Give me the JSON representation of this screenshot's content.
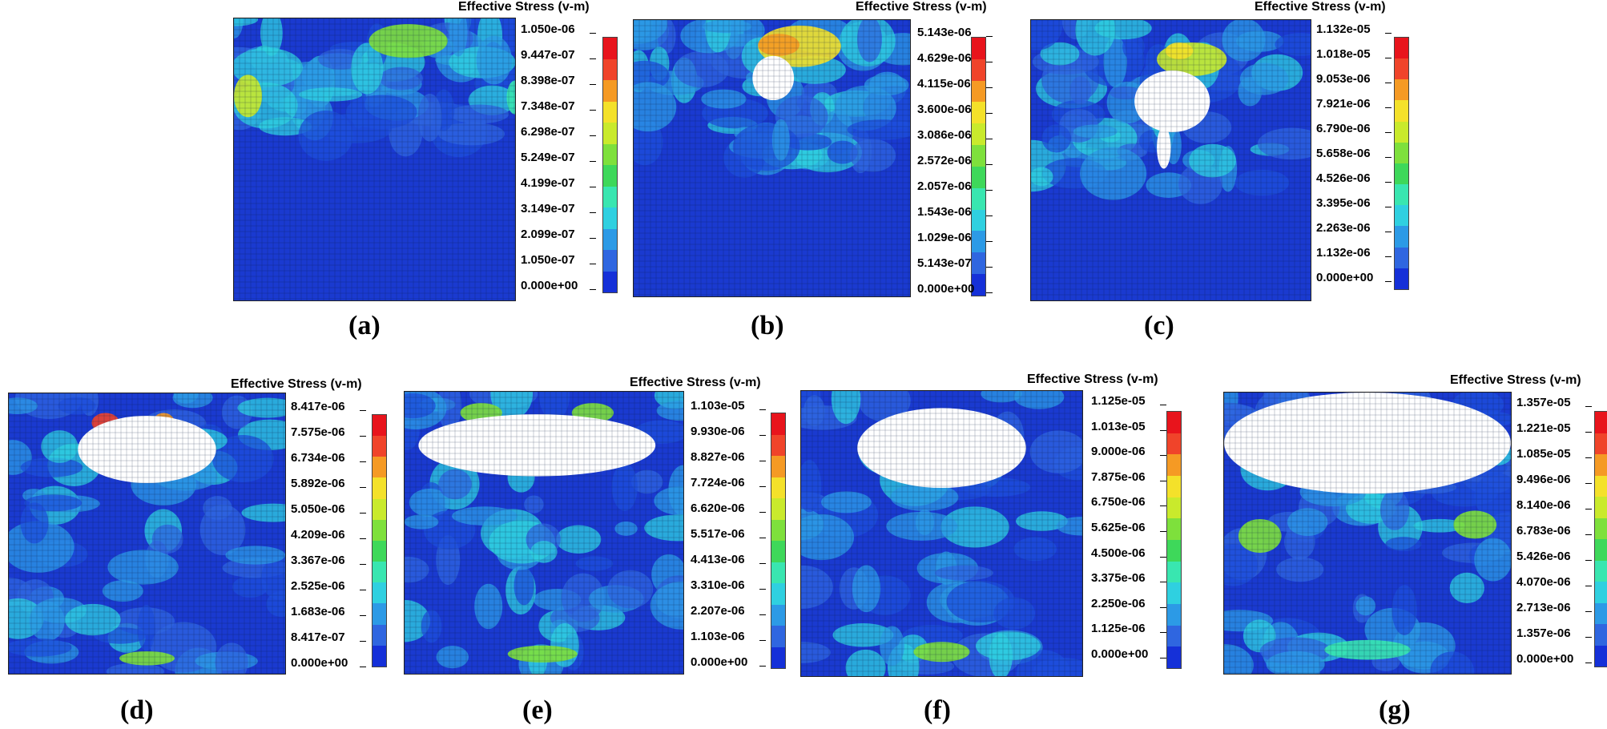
{
  "figure_title": "Effective Stress (v-m)",
  "colors": {
    "scale": [
      "#1530d8",
      "#2f66e0",
      "#2c9ae6",
      "#2fd0e0",
      "#39e6b0",
      "#3ed85a",
      "#7ee03c",
      "#c9ea2c",
      "#f4e12a",
      "#f59a24",
      "#f0442a",
      "#e8141c"
    ],
    "background": "#ffffff"
  },
  "panels": [
    {
      "id": "a",
      "label": "(a)",
      "title": "Effective Stress (v-m)",
      "ticks": [
        "1.050e-06",
        "9.447e-07",
        "8.398e-07",
        "7.348e-07",
        "6.298e-07",
        "5.249e-07",
        "4.199e-07",
        "3.149e-07",
        "2.099e-07",
        "1.050e-07",
        "0.000e+00"
      ]
    },
    {
      "id": "b",
      "label": "(b)",
      "title": "Effective Stress (v-m)",
      "ticks": [
        "5.143e-06",
        "4.629e-06",
        "4.115e-06",
        "3.600e-06",
        "3.086e-06",
        "2.572e-06",
        "2.057e-06",
        "1.543e-06",
        "1.029e-06",
        "5.143e-07",
        "0.000e+00"
      ]
    },
    {
      "id": "c",
      "label": "(c)",
      "title": "Effective Stress (v-m)",
      "ticks": [
        "1.132e-05",
        "1.018e-05",
        "9.053e-06",
        "7.921e-06",
        "6.790e-06",
        "5.658e-06",
        "4.526e-06",
        "3.395e-06",
        "2.263e-06",
        "1.132e-06",
        "0.000e+00"
      ]
    },
    {
      "id": "d",
      "label": "(d)",
      "title": "Effective Stress (v-m)",
      "ticks": [
        "8.417e-06",
        "7.575e-06",
        "6.734e-06",
        "5.892e-06",
        "5.050e-06",
        "4.209e-06",
        "3.367e-06",
        "2.525e-06",
        "1.683e-06",
        "8.417e-07",
        "0.000e+00"
      ]
    },
    {
      "id": "e",
      "label": "(e)",
      "title": "Effective Stress (v-m)",
      "ticks": [
        "1.103e-05",
        "9.930e-06",
        "8.827e-06",
        "7.724e-06",
        "6.620e-06",
        "5.517e-06",
        "4.413e-06",
        "3.310e-06",
        "2.207e-06",
        "1.103e-06",
        "0.000e+00"
      ]
    },
    {
      "id": "f",
      "label": "(f)",
      "title": "Effective Stress (v-m)",
      "ticks": [
        "1.125e-05",
        "1.013e-05",
        "9.000e-06",
        "7.875e-06",
        "6.750e-06",
        "5.625e-06",
        "4.500e-06",
        "3.375e-06",
        "2.250e-06",
        "1.125e-06",
        "0.000e+00"
      ]
    },
    {
      "id": "g",
      "label": "(g)",
      "title": "Effective Stress (v-m)",
      "ticks": [
        "1.357e-05",
        "1.221e-05",
        "1.085e-05",
        "9.496e-06",
        "8.140e-06",
        "6.783e-06",
        "5.426e-06",
        "4.070e-06",
        "2.713e-06",
        "1.357e-06",
        "0.000e+00"
      ]
    }
  ]
}
